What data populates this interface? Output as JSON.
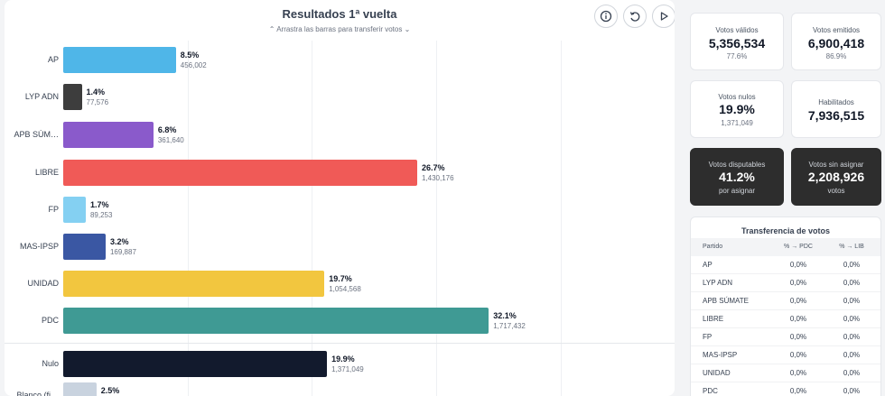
{
  "chart": {
    "title": "Resultados 1ª vuelta",
    "subtitle": "Arrastra las barras para transferir votos",
    "controls": [
      "info-icon",
      "reset-icon",
      "play-icon"
    ]
  },
  "chart_data": {
    "type": "bar",
    "orientation": "horizontal",
    "title": "Resultados 1ª vuelta",
    "categories": [
      "AP",
      "LYP ADN",
      "APB SÚM…",
      "LIBRE",
      "FP",
      "MAS-IPSP",
      "UNIDAD",
      "PDC",
      "Nulo",
      "Blanco (fi…"
    ],
    "values": [
      8.5,
      1.4,
      6.8,
      26.7,
      1.7,
      3.2,
      19.7,
      32.1,
      19.9,
      2.5
    ],
    "value_labels": [
      "8.5%",
      "1.4%",
      "6.8%",
      "26.7%",
      "1.7%",
      "3.2%",
      "19.7%",
      "32.1%",
      "19.9%",
      "2.5%"
    ],
    "votes": [
      "456,002",
      "77,576",
      "361,640",
      "1,430,176",
      "89,253",
      "169,887",
      "1,054,568",
      "1,717,432",
      "1,371,049",
      ""
    ],
    "colors": [
      "#4fb6e8",
      "#3d3d3d",
      "#8a5acb",
      "#f05a57",
      "#84d0f2",
      "#3a57a3",
      "#f2c63f",
      "#3f9a94",
      "#121a2d",
      "#c9d3df"
    ],
    "xlim": [
      0,
      50
    ],
    "grid": true
  },
  "stats": {
    "validos": {
      "label": "Votos válidos",
      "value": "5,356,534",
      "sub": "77.6%"
    },
    "emitidos": {
      "label": "Votos emitidos",
      "value": "6,900,418",
      "sub": "86.9%"
    },
    "nulos": {
      "label": "Votos nulos",
      "value": "19.9%",
      "sub": "1,371,049"
    },
    "habilitados": {
      "label": "Habilitados",
      "value": "7,936,515"
    },
    "disputables": {
      "label": "Votos disputables",
      "value": "41.2%",
      "sub": "por asignar"
    },
    "sin_asignar": {
      "label": "Votos sin asignar",
      "value": "2,208,926",
      "sub": "votos"
    }
  },
  "transfer": {
    "title": "Transferencia de votos",
    "headers": [
      "Partido",
      "% → PDC",
      "% → LIB"
    ],
    "rows": [
      {
        "partido": "AP",
        "pdc": "0,0%",
        "lib": "0,0%"
      },
      {
        "partido": "LYP ADN",
        "pdc": "0,0%",
        "lib": "0,0%"
      },
      {
        "partido": "APB SÚMATE",
        "pdc": "0,0%",
        "lib": "0,0%"
      },
      {
        "partido": "LIBRE",
        "pdc": "0,0%",
        "lib": "0,0%"
      },
      {
        "partido": "FP",
        "pdc": "0,0%",
        "lib": "0,0%"
      },
      {
        "partido": "MAS-IPSP",
        "pdc": "0,0%",
        "lib": "0,0%"
      },
      {
        "partido": "UNIDAD",
        "pdc": "0,0%",
        "lib": "0,0%"
      },
      {
        "partido": "PDC",
        "pdc": "0,0%",
        "lib": "0,0%"
      }
    ]
  }
}
